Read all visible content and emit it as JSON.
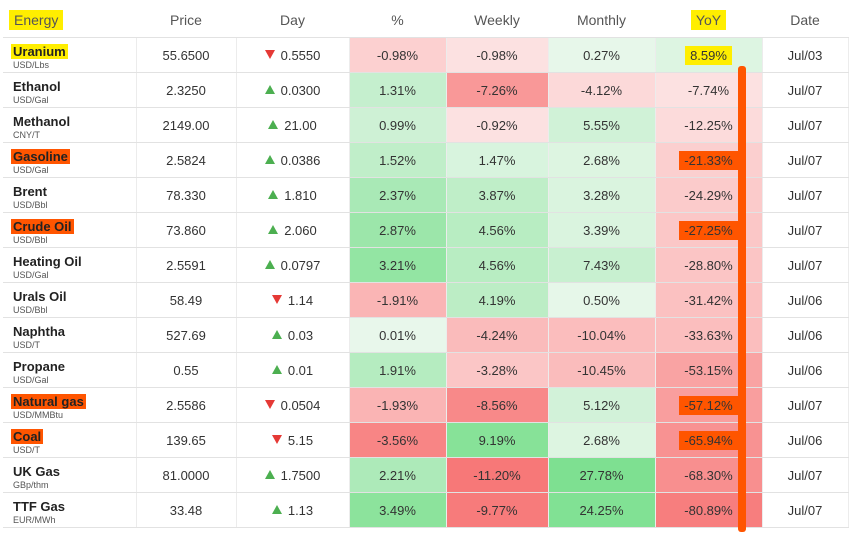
{
  "headers": {
    "energy": "Energy",
    "price": "Price",
    "day": "Day",
    "pct": "%",
    "weekly": "Weekly",
    "monthly": "Monthly",
    "yoy": "YoY",
    "date": "Date"
  },
  "rows": [
    {
      "name": "Uranium",
      "unit": "USD/Lbs",
      "price": "55.6500",
      "dir": "down",
      "day": "0.5550",
      "pct": "-0.98%",
      "weekly": "-0.98%",
      "monthly": "0.27%",
      "yoy": "8.59%",
      "date": "Jul/03",
      "highlight": "yellow"
    },
    {
      "name": "Ethanol",
      "unit": "USD/Gal",
      "price": "2.3250",
      "dir": "up",
      "day": "0.0300",
      "pct": "1.31%",
      "weekly": "-7.26%",
      "monthly": "-4.12%",
      "yoy": "-7.74%",
      "date": "Jul/07",
      "highlight": "none"
    },
    {
      "name": "Methanol",
      "unit": "CNY/T",
      "price": "2149.00",
      "dir": "up",
      "day": "21.00",
      "pct": "0.99%",
      "weekly": "-0.92%",
      "monthly": "5.55%",
      "yoy": "-12.25%",
      "date": "Jul/07",
      "highlight": "none"
    },
    {
      "name": "Gasoline",
      "unit": "USD/Gal",
      "price": "2.5824",
      "dir": "up",
      "day": "0.0386",
      "pct": "1.52%",
      "weekly": "1.47%",
      "monthly": "2.68%",
      "yoy": "-21.33%",
      "date": "Jul/07",
      "highlight": "orange"
    },
    {
      "name": "Brent",
      "unit": "USD/Bbl",
      "price": "78.330",
      "dir": "up",
      "day": "1.810",
      "pct": "2.37%",
      "weekly": "3.87%",
      "monthly": "3.28%",
      "yoy": "-24.29%",
      "date": "Jul/07",
      "highlight": "none"
    },
    {
      "name": "Crude Oil",
      "unit": "USD/Bbl",
      "price": "73.860",
      "dir": "up",
      "day": "2.060",
      "pct": "2.87%",
      "weekly": "4.56%",
      "monthly": "3.39%",
      "yoy": "-27.25%",
      "date": "Jul/07",
      "highlight": "orange"
    },
    {
      "name": "Heating Oil",
      "unit": "USD/Gal",
      "price": "2.5591",
      "dir": "up",
      "day": "0.0797",
      "pct": "3.21%",
      "weekly": "4.56%",
      "monthly": "7.43%",
      "yoy": "-28.80%",
      "date": "Jul/07",
      "highlight": "none"
    },
    {
      "name": "Urals Oil",
      "unit": "USD/Bbl",
      "price": "58.49",
      "dir": "down",
      "day": "1.14",
      "pct": "-1.91%",
      "weekly": "4.19%",
      "monthly": "0.50%",
      "yoy": "-31.42%",
      "date": "Jul/06",
      "highlight": "none"
    },
    {
      "name": "Naphtha",
      "unit": "USD/T",
      "price": "527.69",
      "dir": "up",
      "day": "0.03",
      "pct": "0.01%",
      "weekly": "-4.24%",
      "monthly": "-10.04%",
      "yoy": "-33.63%",
      "date": "Jul/06",
      "highlight": "none"
    },
    {
      "name": "Propane",
      "unit": "USD/Gal",
      "price": "0.55",
      "dir": "up",
      "day": "0.01",
      "pct": "1.91%",
      "weekly": "-3.28%",
      "monthly": "-10.45%",
      "yoy": "-53.15%",
      "date": "Jul/06",
      "highlight": "none"
    },
    {
      "name": "Natural gas",
      "unit": "USD/MMBtu",
      "price": "2.5586",
      "dir": "down",
      "day": "0.0504",
      "pct": "-1.93%",
      "weekly": "-8.56%",
      "monthly": "5.12%",
      "yoy": "-57.12%",
      "date": "Jul/07",
      "highlight": "orange"
    },
    {
      "name": "Coal",
      "unit": "USD/T",
      "price": "139.65",
      "dir": "down",
      "day": "5.15",
      "pct": "-3.56%",
      "weekly": "9.19%",
      "monthly": "2.68%",
      "yoy": "-65.94%",
      "date": "Jul/06",
      "highlight": "orange"
    },
    {
      "name": "UK Gas",
      "unit": "GBp/thm",
      "price": "81.0000",
      "dir": "up",
      "day": "1.7500",
      "pct": "2.21%",
      "weekly": "-11.20%",
      "monthly": "27.78%",
      "yoy": "-68.30%",
      "date": "Jul/07",
      "highlight": "none"
    },
    {
      "name": "TTF Gas",
      "unit": "EUR/MWh",
      "price": "33.48",
      "dir": "up",
      "day": "1.13",
      "pct": "3.49%",
      "weekly": "-9.77%",
      "monthly": "24.25%",
      "yoy": "-80.89%",
      "date": "Jul/07",
      "highlight": "none"
    }
  ],
  "colors": {
    "highlight_yellow": "#ffee00",
    "highlight_orange": "#ff5500",
    "up_arrow": "#4caf50",
    "down_arrow": "#e53935"
  }
}
